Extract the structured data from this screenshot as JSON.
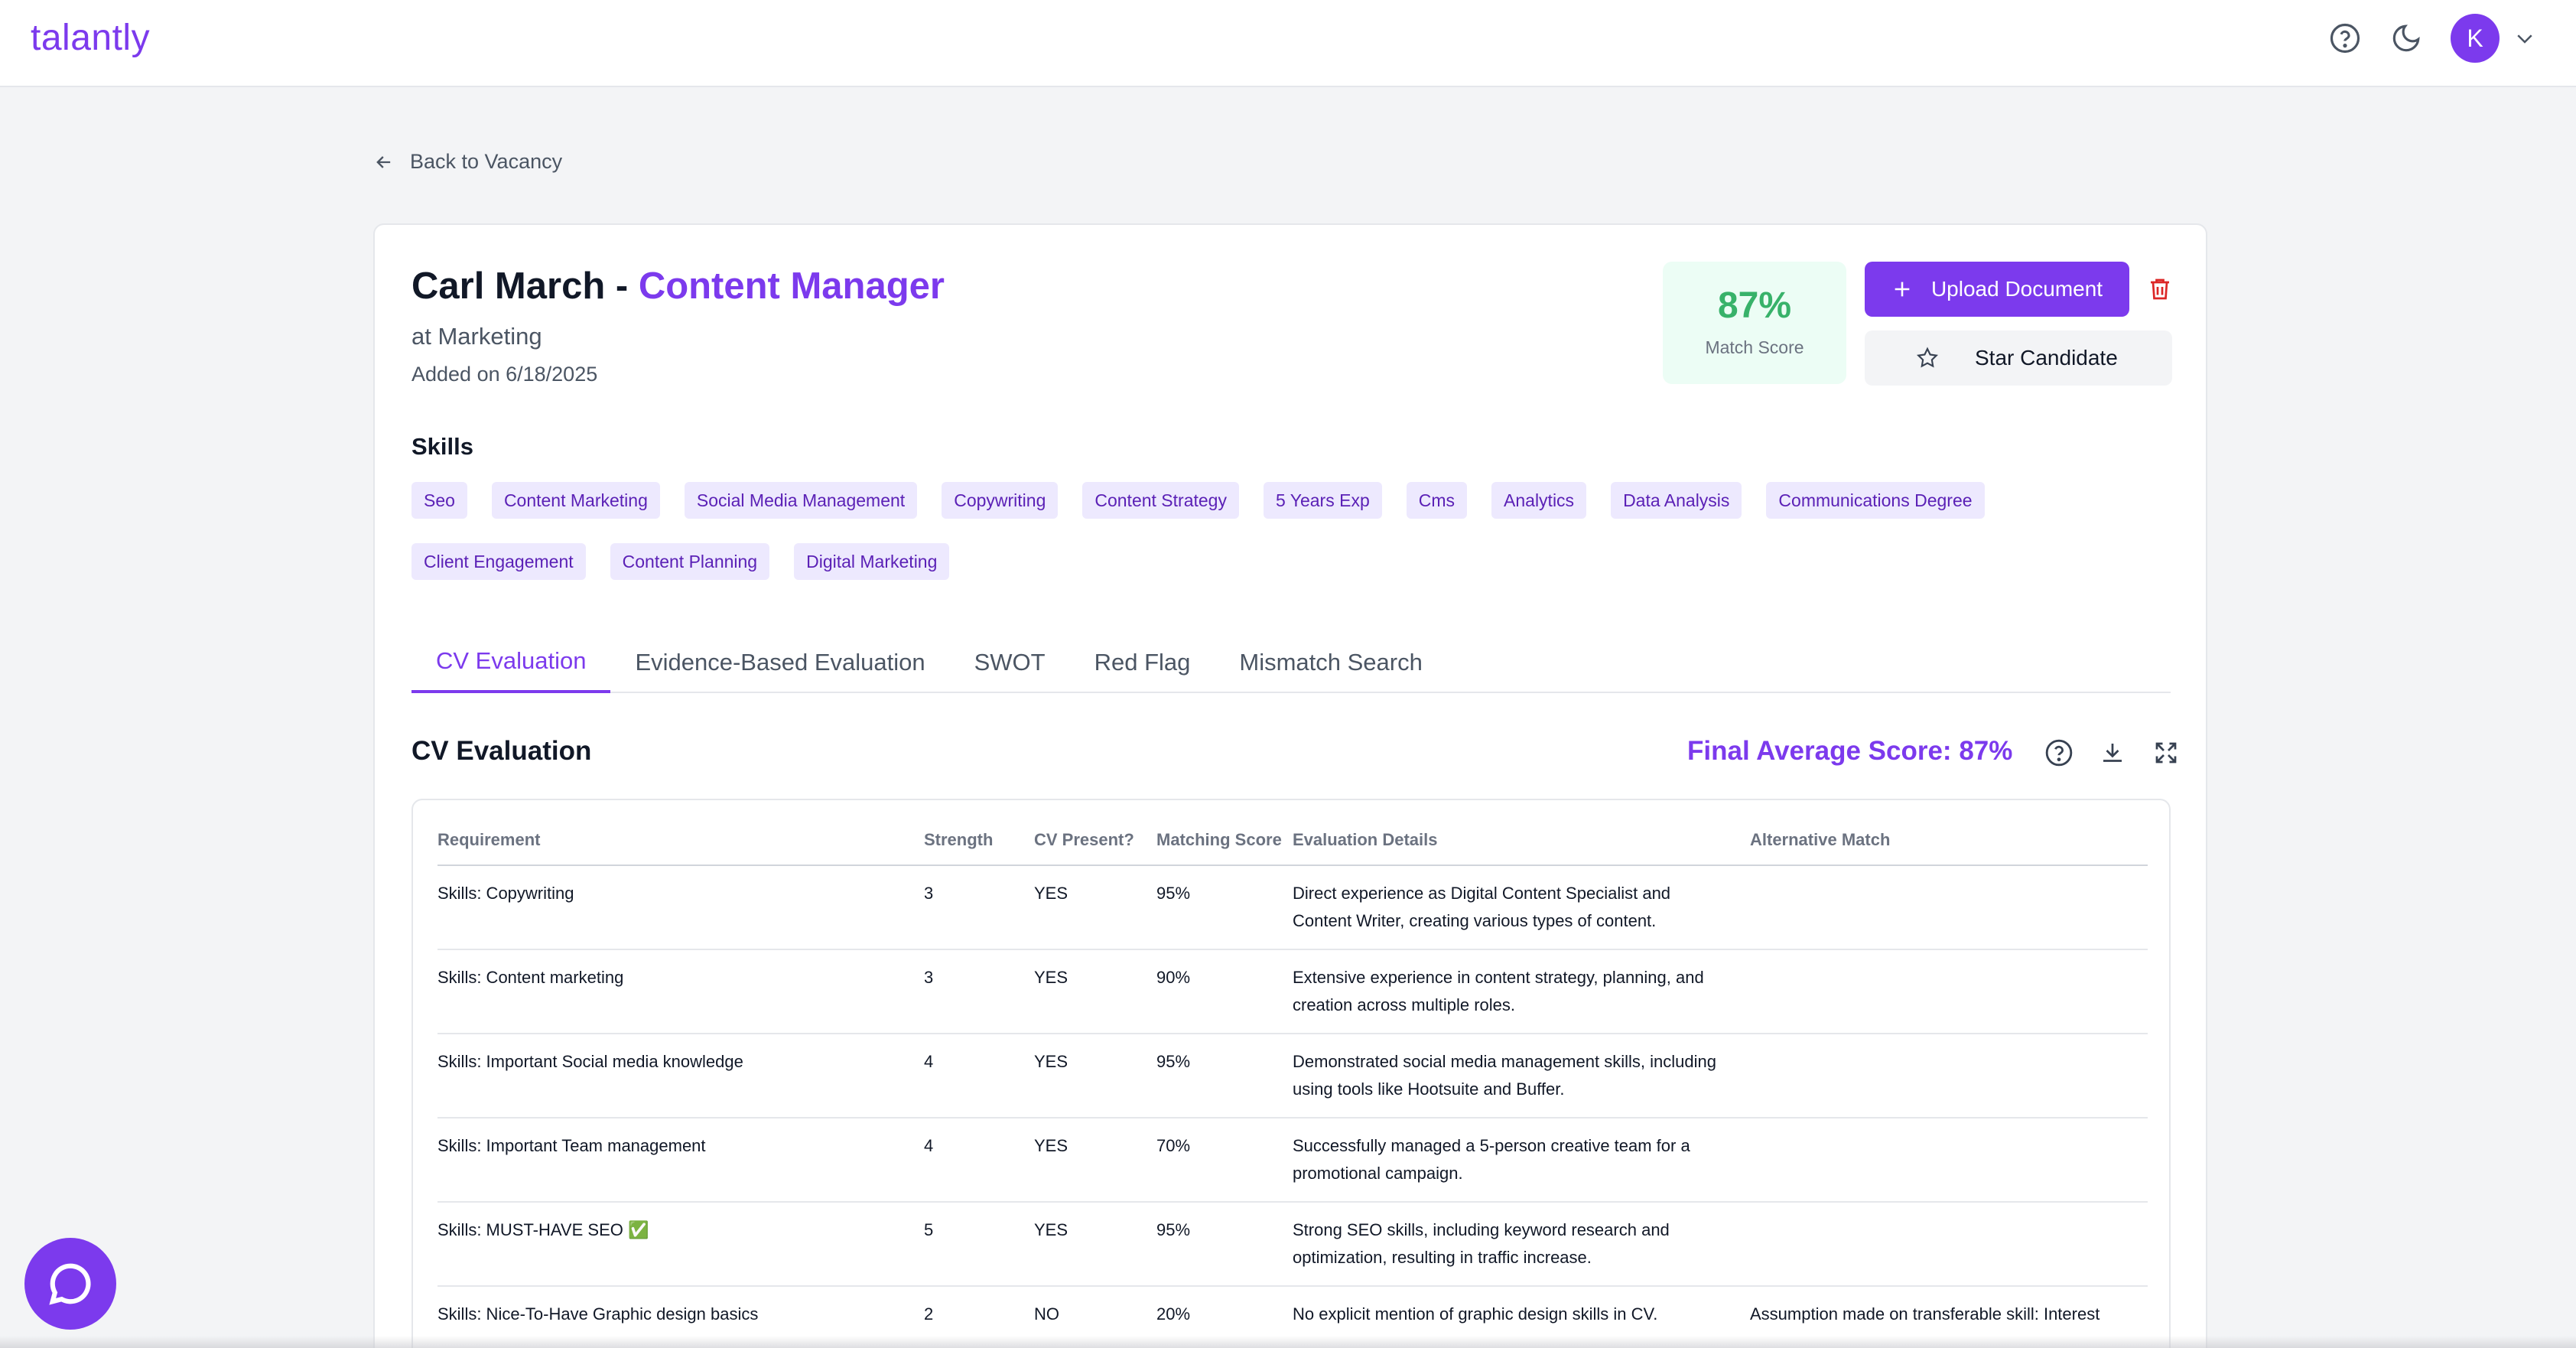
{
  "app": {
    "logo": "talantly",
    "avatar_initial": "K",
    "colors": {
      "accent": "#7c3aed",
      "match": "#38b26a",
      "danger": "#dc2626"
    }
  },
  "nav": {
    "back_label": "Back to Vacancy"
  },
  "candidate": {
    "name": "Carl March - ",
    "role": "Content Manager",
    "department": "at Marketing",
    "added": "Added on 6/18/2025",
    "match_score": "87%",
    "match_label": "Match Score",
    "upload_label": "Upload Document",
    "star_label": "Star Candidate"
  },
  "skills": {
    "title": "Skills",
    "items": [
      "Seo",
      "Content Marketing",
      "Social Media Management",
      "Copywriting",
      "Content Strategy",
      "5 Years Exp",
      "Cms",
      "Analytics",
      "Data Analysis",
      "Communications Degree",
      "Client Engagement",
      "Content Planning",
      "Digital Marketing"
    ]
  },
  "tabs": [
    {
      "label": "CV Evaluation",
      "active": true
    },
    {
      "label": "Evidence-Based Evaluation",
      "active": false
    },
    {
      "label": "SWOT",
      "active": false
    },
    {
      "label": "Red Flag",
      "active": false
    },
    {
      "label": "Mismatch Search",
      "active": false
    }
  ],
  "evaluation": {
    "title": "CV Evaluation",
    "final_score": "Final Average Score: 87%",
    "columns": [
      "Requirement",
      "Strength",
      "CV Present?",
      "Matching Score",
      "Evaluation Details",
      "Alternative Match"
    ],
    "rows": [
      {
        "requirement": "Skills: Copywriting",
        "strength": "3",
        "present": "YES",
        "score": "95%",
        "details": "Direct experience as Digital Content Specialist and Content Writer, creating various types of content.",
        "alt": ""
      },
      {
        "requirement": "Skills: Content marketing",
        "strength": "3",
        "present": "YES",
        "score": "90%",
        "details": "Extensive experience in content strategy, planning, and creation across multiple roles.",
        "alt": ""
      },
      {
        "requirement": "Skills: Important Social media knowledge",
        "strength": "4",
        "present": "YES",
        "score": "95%",
        "details": "Demonstrated social media management skills, including using tools like Hootsuite and Buffer.",
        "alt": ""
      },
      {
        "requirement": "Skills: Important Team management",
        "strength": "4",
        "present": "YES",
        "score": "70%",
        "details": "Successfully managed a 5-person creative team for a promotional campaign.",
        "alt": ""
      },
      {
        "requirement": "Skills: MUST-HAVE SEO ✅",
        "strength": "5",
        "present": "YES",
        "score": "95%",
        "details": "Strong SEO skills, including keyword research and optimization, resulting in traffic increase.",
        "alt": ""
      },
      {
        "requirement": "Skills: Nice-To-Have Graphic design basics",
        "strength": "2",
        "present": "NO",
        "score": "20%",
        "details": "No explicit mention of graphic design skills in CV.",
        "alt": "Assumption made on transferable skill: Interest"
      }
    ]
  }
}
